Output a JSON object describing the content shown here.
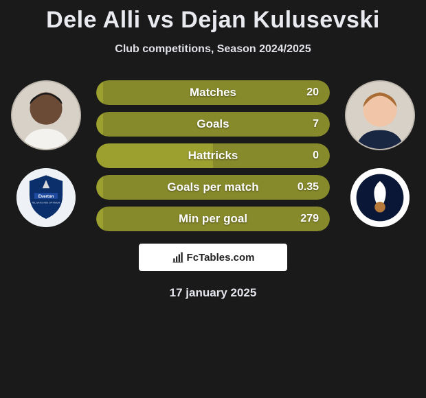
{
  "title": "Dele Alli vs Dejan Kulusevski",
  "subtitle": "Club competitions, Season 2024/2025",
  "date": "17 january 2025",
  "brand": {
    "text": "FcTables.com"
  },
  "colors": {
    "bar_left": "#9ca02f",
    "bar_right": "#878a2b",
    "background": "#1a1a1a",
    "text": "#ffffff"
  },
  "player_left": {
    "name": "Dele Alli",
    "avatar_skin": "#6b4b36",
    "shirt": "#f4f2ef",
    "club_name": "Everton",
    "club_bg": "#0b2f6b",
    "club_banner": "#1e4aa0"
  },
  "player_right": {
    "name": "Dejan Kulusevski",
    "avatar_skin": "#f1c5a7",
    "hair": "#a86c34",
    "shirt": "#1a2742",
    "club_name": "Tottenham",
    "club_bg": "#ffffff",
    "club_mark": "#0b1736"
  },
  "stats": [
    {
      "label": "Matches",
      "left_value": "",
      "right_value": "20",
      "left_pct": 3
    },
    {
      "label": "Goals",
      "left_value": "",
      "right_value": "7",
      "left_pct": 3
    },
    {
      "label": "Hattricks",
      "left_value": "",
      "right_value": "0",
      "left_pct": 50
    },
    {
      "label": "Goals per match",
      "left_value": "",
      "right_value": "0.35",
      "left_pct": 3
    },
    {
      "label": "Min per goal",
      "left_value": "",
      "right_value": "279",
      "left_pct": 3
    }
  ]
}
